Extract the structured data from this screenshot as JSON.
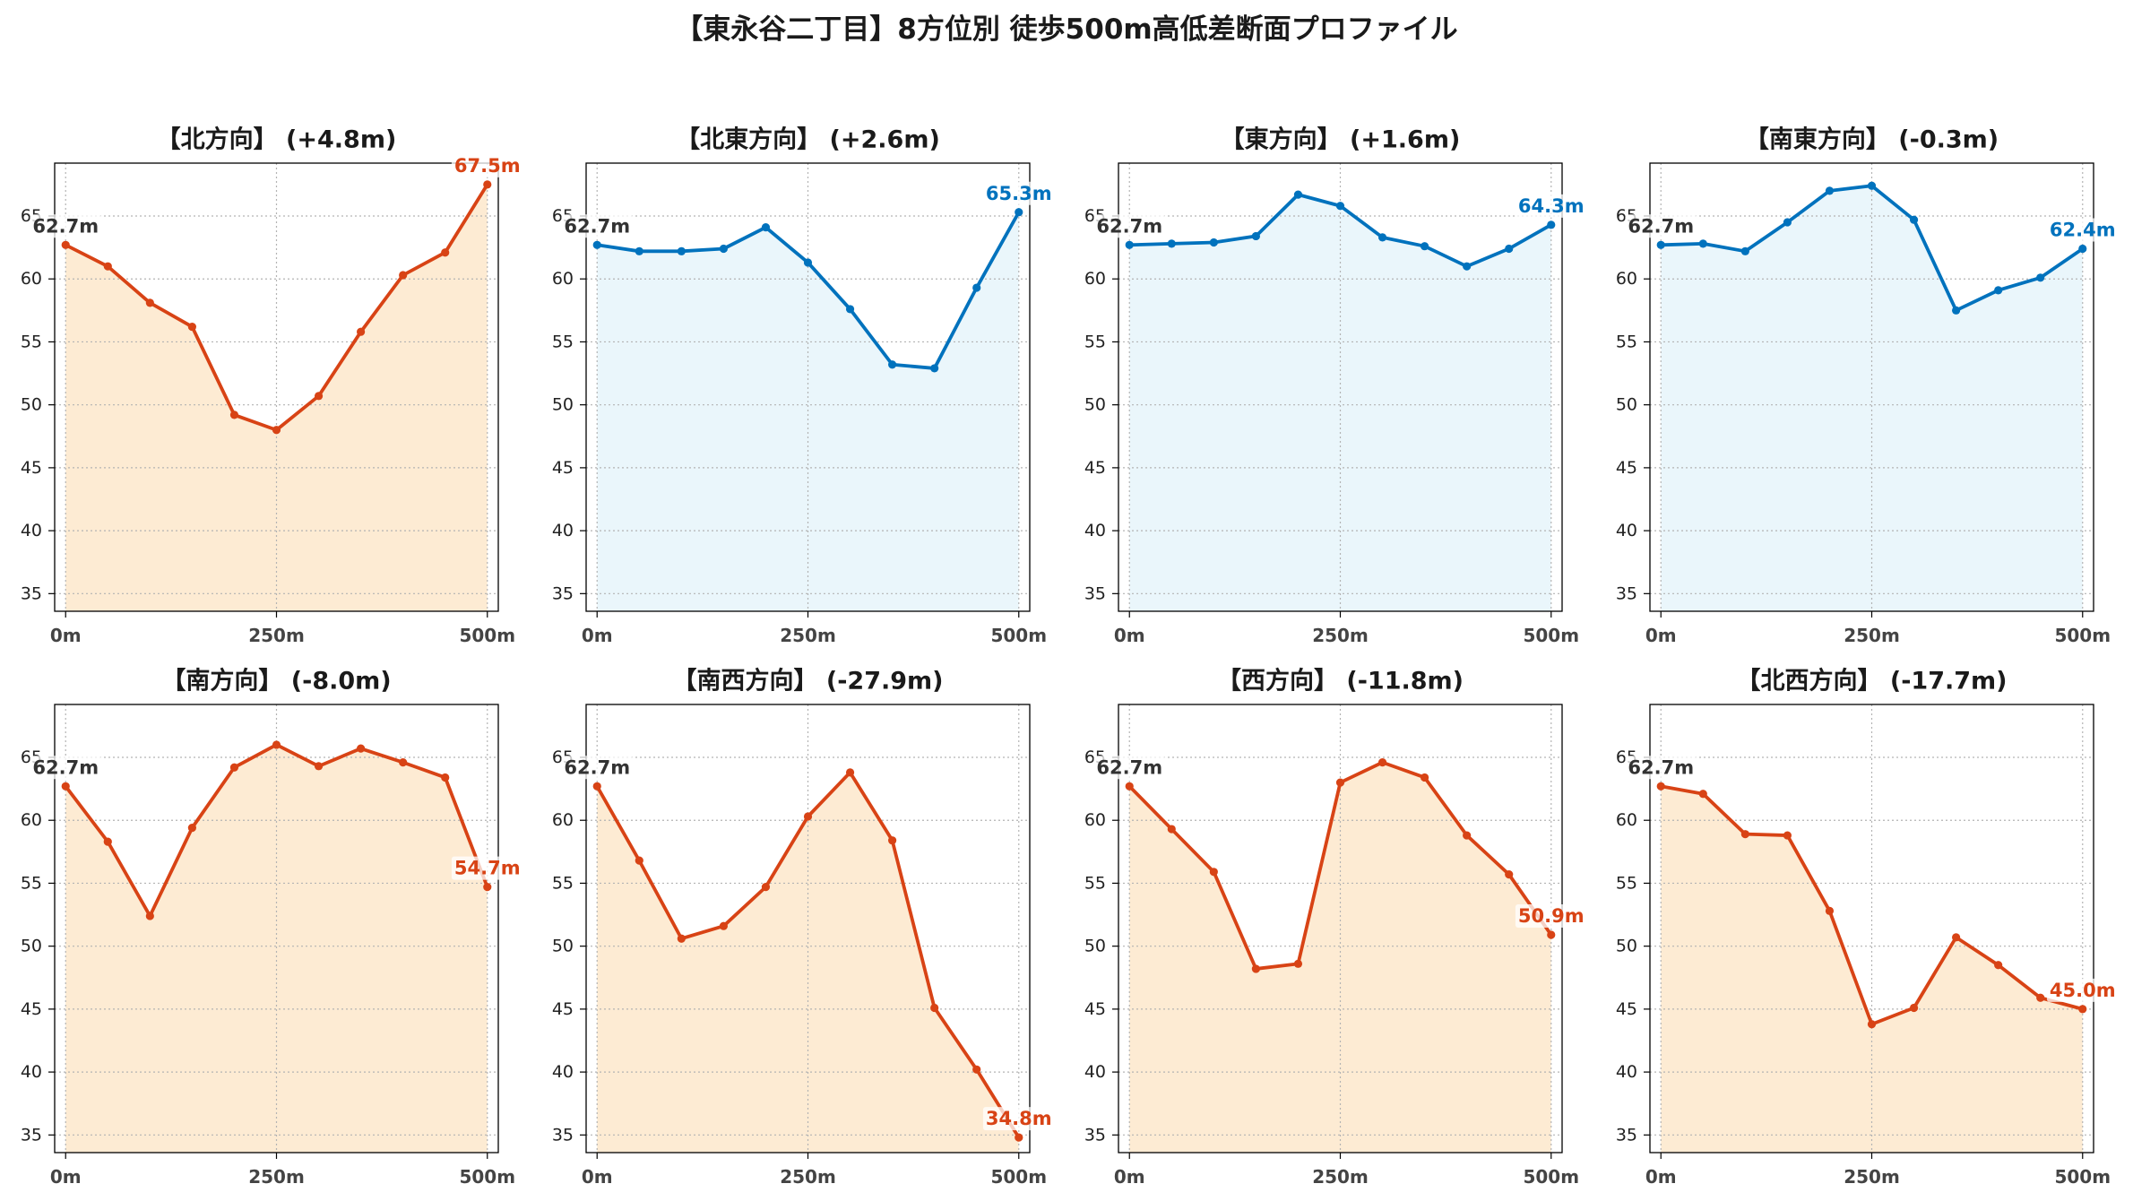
{
  "title": "【東永谷二丁目】8方位別 徒歩500m高低差断面プロファイル",
  "chart_data": [
    {
      "type": "area",
      "title": "【北方向】 (+4.8m)",
      "x": [
        0,
        50,
        100,
        150,
        200,
        250,
        300,
        350,
        400,
        450,
        500
      ],
      "values": [
        62.7,
        61.0,
        58.1,
        56.2,
        49.2,
        48.0,
        50.7,
        55.8,
        60.3,
        62.1,
        67.5
      ],
      "start_label": "62.7m",
      "end_label": "67.5m",
      "line_color": "#d84315",
      "fill_color": "#fdebd3",
      "x_ticks": [
        0,
        250,
        500
      ],
      "x_tick_labels": [
        "0m",
        "250m",
        "500m"
      ],
      "y_ticks": [
        35,
        40,
        45,
        50,
        55,
        60,
        65
      ],
      "xlim": [
        -13,
        513
      ],
      "ylim": [
        33.6,
        69.2
      ],
      "grid": true
    },
    {
      "type": "area",
      "title": "【北東方向】 (+2.6m)",
      "x": [
        0,
        50,
        100,
        150,
        200,
        250,
        300,
        350,
        400,
        450,
        500
      ],
      "values": [
        62.7,
        62.2,
        62.2,
        62.4,
        64.1,
        61.3,
        57.6,
        53.2,
        52.9,
        59.3,
        65.3
      ],
      "start_label": "62.7m",
      "end_label": "65.3m",
      "line_color": "#0072bd",
      "fill_color": "#eaf6fb",
      "x_ticks": [
        0,
        250,
        500
      ],
      "x_tick_labels": [
        "0m",
        "250m",
        "500m"
      ],
      "y_ticks": [
        35,
        40,
        45,
        50,
        55,
        60,
        65
      ],
      "xlim": [
        -13,
        513
      ],
      "ylim": [
        33.6,
        69.2
      ],
      "grid": true
    },
    {
      "type": "area",
      "title": "【東方向】 (+1.6m)",
      "x": [
        0,
        50,
        100,
        150,
        200,
        250,
        300,
        350,
        400,
        450,
        500
      ],
      "values": [
        62.7,
        62.8,
        62.9,
        63.4,
        66.7,
        65.8,
        63.3,
        62.6,
        61.0,
        62.4,
        64.3
      ],
      "start_label": "62.7m",
      "end_label": "64.3m",
      "line_color": "#0072bd",
      "fill_color": "#eaf6fb",
      "x_ticks": [
        0,
        250,
        500
      ],
      "x_tick_labels": [
        "0m",
        "250m",
        "500m"
      ],
      "y_ticks": [
        35,
        40,
        45,
        50,
        55,
        60,
        65
      ],
      "xlim": [
        -13,
        513
      ],
      "ylim": [
        33.6,
        69.2
      ],
      "grid": true
    },
    {
      "type": "area",
      "title": "【南東方向】 (-0.3m)",
      "x": [
        0,
        50,
        100,
        150,
        200,
        250,
        300,
        350,
        400,
        450,
        500
      ],
      "values": [
        62.7,
        62.8,
        62.2,
        64.5,
        67.0,
        67.4,
        64.7,
        57.5,
        59.1,
        60.1,
        62.4
      ],
      "start_label": "62.7m",
      "end_label": "62.4m",
      "line_color": "#0072bd",
      "fill_color": "#eaf6fb",
      "x_ticks": [
        0,
        250,
        500
      ],
      "x_tick_labels": [
        "0m",
        "250m",
        "500m"
      ],
      "y_ticks": [
        35,
        40,
        45,
        50,
        55,
        60,
        65
      ],
      "xlim": [
        -13,
        513
      ],
      "ylim": [
        33.6,
        69.2
      ],
      "grid": true
    },
    {
      "type": "area",
      "title": "【南方向】 (-8.0m)",
      "x": [
        0,
        50,
        100,
        150,
        200,
        250,
        300,
        350,
        400,
        450,
        500
      ],
      "values": [
        62.7,
        58.3,
        52.4,
        59.4,
        64.2,
        66.0,
        64.3,
        65.7,
        64.6,
        63.4,
        54.7
      ],
      "start_label": "62.7m",
      "end_label": "54.7m",
      "line_color": "#d84315",
      "fill_color": "#fdebd3",
      "x_ticks": [
        0,
        250,
        500
      ],
      "x_tick_labels": [
        "0m",
        "250m",
        "500m"
      ],
      "y_ticks": [
        35,
        40,
        45,
        50,
        55,
        60,
        65
      ],
      "xlim": [
        -13,
        513
      ],
      "ylim": [
        33.6,
        69.2
      ],
      "grid": true
    },
    {
      "type": "area",
      "title": "【南西方向】 (-27.9m)",
      "x": [
        0,
        50,
        100,
        150,
        200,
        250,
        300,
        350,
        400,
        450,
        500
      ],
      "values": [
        62.7,
        56.8,
        50.6,
        51.6,
        54.7,
        60.3,
        63.8,
        58.4,
        45.1,
        40.2,
        34.8
      ],
      "start_label": "62.7m",
      "end_label": "34.8m",
      "line_color": "#d84315",
      "fill_color": "#fdebd3",
      "x_ticks": [
        0,
        250,
        500
      ],
      "x_tick_labels": [
        "0m",
        "250m",
        "500m"
      ],
      "y_ticks": [
        35,
        40,
        45,
        50,
        55,
        60,
        65
      ],
      "xlim": [
        -13,
        513
      ],
      "ylim": [
        33.6,
        69.2
      ],
      "grid": true
    },
    {
      "type": "area",
      "title": "【西方向】 (-11.8m)",
      "x": [
        0,
        50,
        100,
        150,
        200,
        250,
        300,
        350,
        400,
        450,
        500
      ],
      "values": [
        62.7,
        59.3,
        55.9,
        48.2,
        48.6,
        63.0,
        64.6,
        63.4,
        58.8,
        55.7,
        50.9
      ],
      "start_label": "62.7m",
      "end_label": "50.9m",
      "line_color": "#d84315",
      "fill_color": "#fdebd3",
      "x_ticks": [
        0,
        250,
        500
      ],
      "x_tick_labels": [
        "0m",
        "250m",
        "500m"
      ],
      "y_ticks": [
        35,
        40,
        45,
        50,
        55,
        60,
        65
      ],
      "xlim": [
        -13,
        513
      ],
      "ylim": [
        33.6,
        69.2
      ],
      "grid": true
    },
    {
      "type": "area",
      "title": "【北西方向】 (-17.7m)",
      "x": [
        0,
        50,
        100,
        150,
        200,
        250,
        300,
        350,
        400,
        450,
        500
      ],
      "values": [
        62.7,
        62.1,
        58.9,
        58.8,
        52.8,
        43.8,
        45.1,
        50.7,
        48.5,
        45.9,
        45.0
      ],
      "start_label": "62.7m",
      "end_label": "45.0m",
      "line_color": "#d84315",
      "fill_color": "#fdebd3",
      "x_ticks": [
        0,
        250,
        500
      ],
      "x_tick_labels": [
        "0m",
        "250m",
        "500m"
      ],
      "y_ticks": [
        35,
        40,
        45,
        50,
        55,
        60,
        65
      ],
      "xlim": [
        -13,
        513
      ],
      "ylim": [
        33.6,
        69.2
      ],
      "grid": true
    }
  ]
}
